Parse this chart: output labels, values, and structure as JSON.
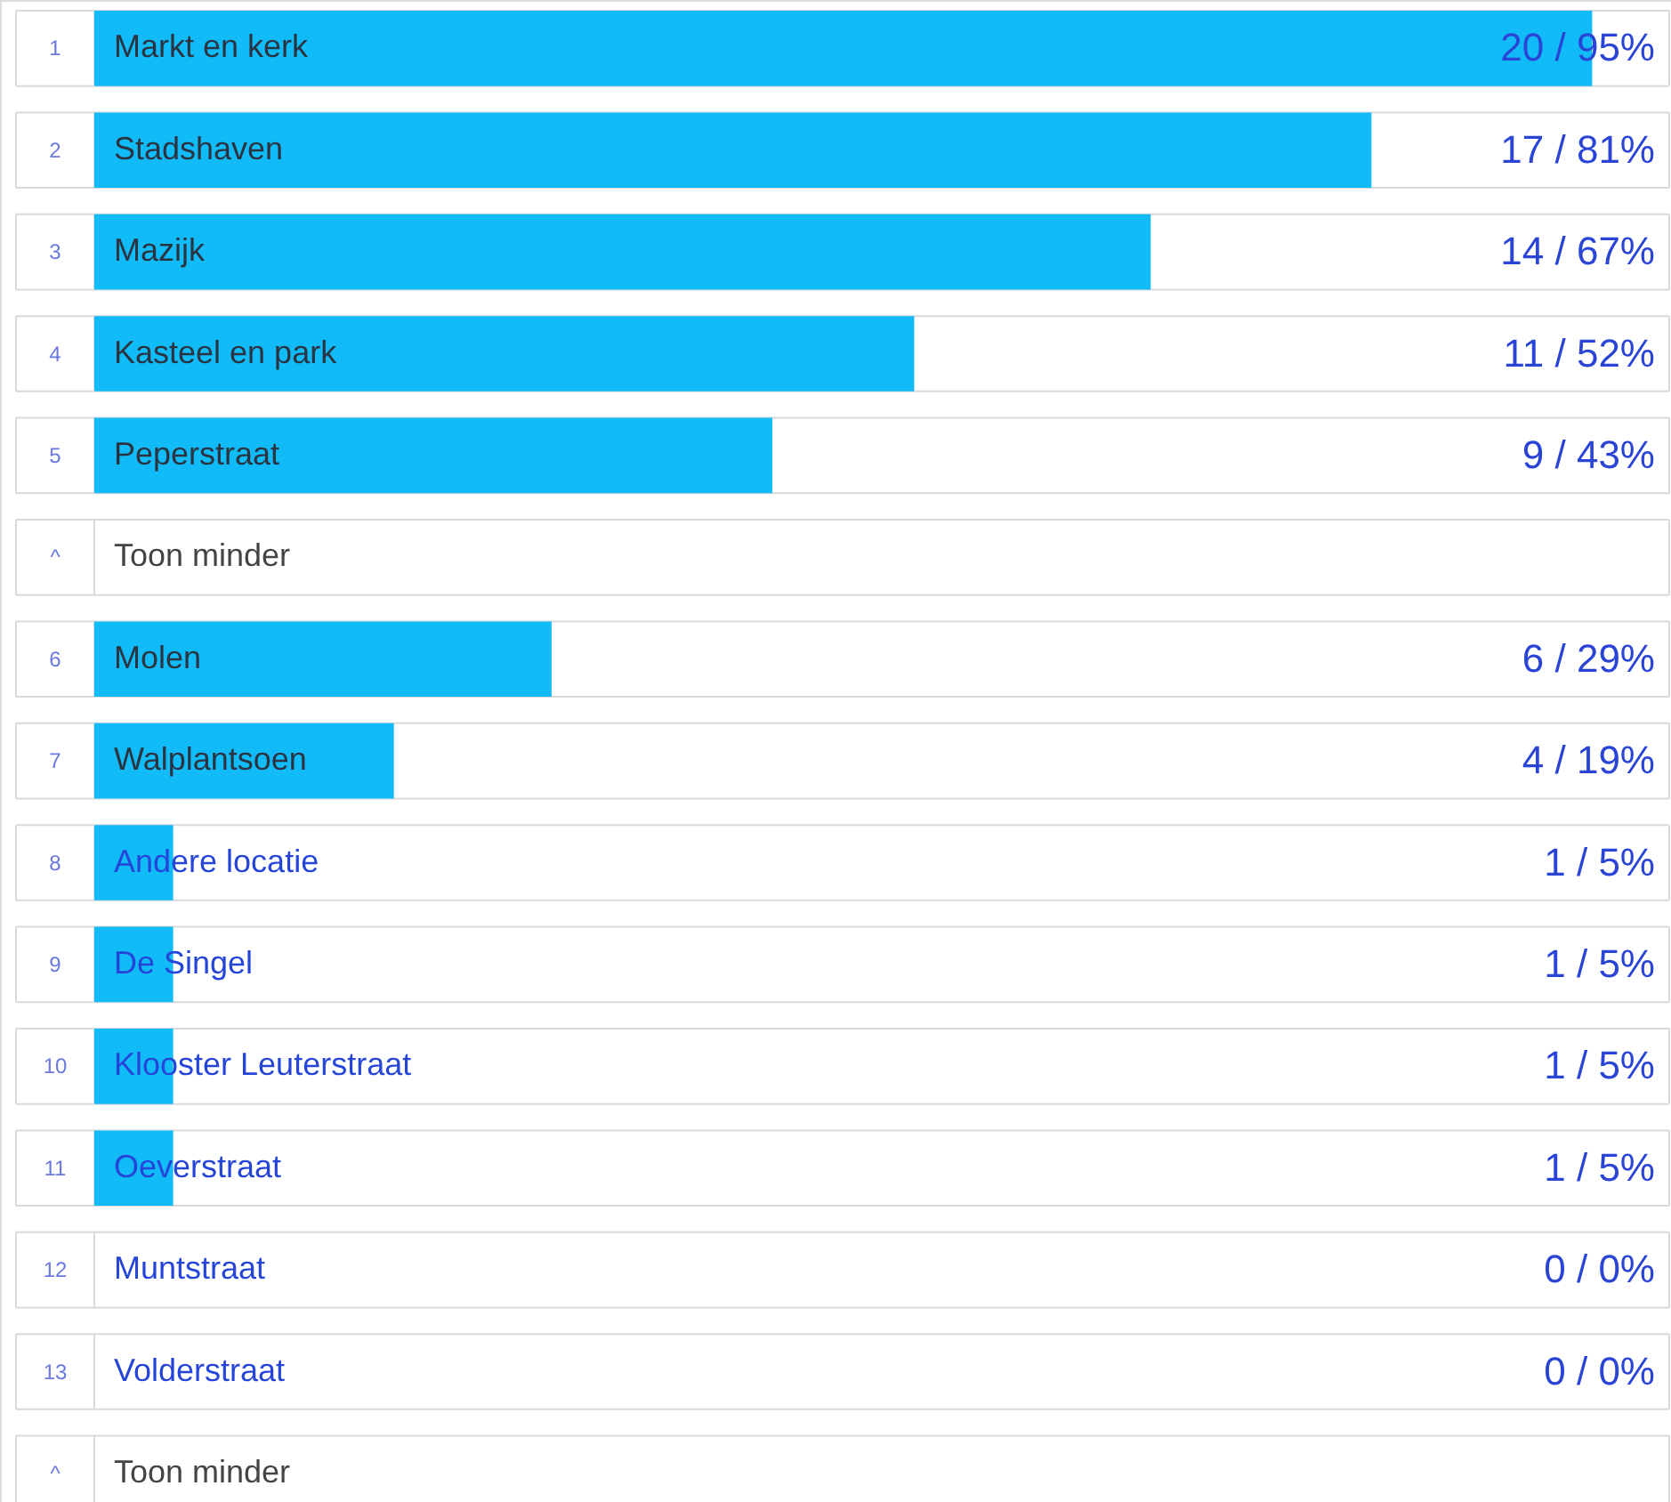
{
  "chart_data": {
    "type": "bar",
    "orientation": "horizontal",
    "categories": [
      "Markt en kerk",
      "Stadshaven",
      "Mazijk",
      "Kasteel en park",
      "Peperstraat",
      "Molen",
      "Walplantsoen",
      "Andere locatie",
      "De Singel",
      "Klooster Leuterstraat",
      "Oeverstraat",
      "Muntstraat",
      "Volderstraat"
    ],
    "values": [
      95,
      81,
      67,
      52,
      43,
      29,
      19,
      5,
      5,
      5,
      5,
      0,
      0
    ],
    "value_labels": [
      "20 / 95%",
      "17 / 81%",
      "14 / 67%",
      "11 / 52%",
      "9 / 43%",
      "6 / 29%",
      "4 / 19%",
      "1 / 5%",
      "1 / 5%",
      "1 / 5%",
      "1 / 5%",
      "0 / 0%",
      "0 / 0%"
    ],
    "color": "#10bbf8",
    "xlim": [
      0,
      100
    ],
    "tick_labels": "y",
    "grid": false,
    "annotations": [
      "1",
      "2",
      "3",
      "4",
      "5",
      "6",
      "7",
      "8",
      "9",
      "10",
      "11",
      "12",
      "13",
      "^",
      "Toon minder",
      "^",
      "Toon minder"
    ]
  }
}
